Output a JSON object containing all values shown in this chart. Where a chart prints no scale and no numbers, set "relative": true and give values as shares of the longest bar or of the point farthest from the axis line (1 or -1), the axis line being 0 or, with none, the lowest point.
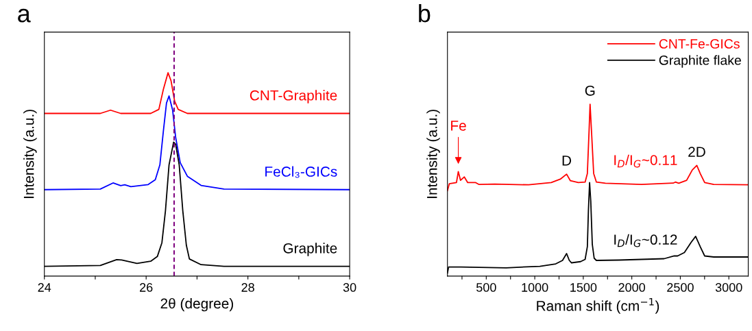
{
  "chart_data": [
    {
      "type": "line",
      "title": "a",
      "xlabel": "2θ (degree)",
      "ylabel": "Intensity (a.u.)",
      "relative": true,
      "legend": false,
      "tick_labels": "x",
      "grid": false,
      "xlim": [
        24,
        30
      ],
      "xticks": [
        24,
        {
          "value": 25,
          "label": null
        },
        26,
        {
          "value": 27,
          "label": null
        },
        28,
        {
          "value": 29,
          "label": null
        },
        30
      ],
      "ref_lines": [
        {
          "axis": "x",
          "value": 26.55,
          "color": "#800080",
          "line_style": "dashed"
        }
      ],
      "series": [
        {
          "name": "CNT-Graphite",
          "color": "#ff0000",
          "x": [
            24,
            25.1,
            25.3,
            25.5,
            26.09,
            26.25,
            26.34,
            26.43,
            26.49,
            26.56,
            26.63,
            26.81,
            27.5,
            30
          ],
          "values": [
            0.8,
            0.8,
            0.816,
            0.8,
            0.8,
            0.82,
            0.92,
            1.0,
            0.96,
            0.86,
            0.82,
            0.8,
            0.8,
            0.8
          ]
        },
        {
          "name": "FeCl₃-GICs",
          "color": "#0000ff",
          "x": [
            24,
            25.1,
            25.35,
            25.5,
            25.58,
            25.7,
            26.04,
            26.18,
            26.27,
            26.34,
            26.4,
            26.45,
            26.52,
            26.58,
            26.67,
            26.81,
            27.08,
            27.53,
            30
          ],
          "values": [
            0.425,
            0.428,
            0.458,
            0.445,
            0.449,
            0.44,
            0.45,
            0.474,
            0.547,
            0.716,
            0.851,
            0.886,
            0.817,
            0.682,
            0.558,
            0.491,
            0.446,
            0.428,
            0.425
          ]
        },
        {
          "name": "Graphite",
          "color": "#000000",
          "x": [
            24,
            25.1,
            25.42,
            25.52,
            25.82,
            26.09,
            26.22,
            26.31,
            26.38,
            26.45,
            26.54,
            26.58,
            26.65,
            26.72,
            26.79,
            26.85,
            27.08,
            27.53,
            30
          ],
          "values": [
            0.048,
            0.052,
            0.081,
            0.079,
            0.062,
            0.073,
            0.096,
            0.164,
            0.322,
            0.547,
            0.659,
            0.648,
            0.547,
            0.322,
            0.152,
            0.084,
            0.056,
            0.048,
            0.048
          ]
        }
      ]
    },
    {
      "type": "line",
      "title": "b",
      "xlabel": "Raman shift (cm$^{−1}$)",
      "ylabel": "Intensity (a.u.)",
      "relative": true,
      "legend": "top right",
      "tick_labels": "x",
      "grid": false,
      "xlim": [
        100,
        3200
      ],
      "xticks": [
        {
          "value": 250,
          "label": null
        },
        500,
        {
          "value": 750,
          "label": null
        },
        1000,
        {
          "value": 1250,
          "label": null
        },
        1500,
        {
          "value": 1750,
          "label": null
        },
        2000,
        {
          "value": 2250,
          "label": null
        },
        2500,
        {
          "value": 2750,
          "label": null
        },
        3000
      ],
      "annotations": [
        {
          "text": "Fe",
          "x": 212,
          "y": 0.608
        },
        {
          "text": "D",
          "x": 1328,
          "y": 0.593
        },
        {
          "text": "G",
          "x": 1570,
          "y": 1.0
        },
        {
          "text": "2D",
          "x": 2670,
          "y": 0.644
        },
        "I$_{D}$/I$_{G}$~0.11",
        "I$_{D}$/I$_{G}$~0.12"
      ],
      "series": [
        {
          "name": "CNT-Fe-GICs",
          "color": "#ff0000",
          "x": [
            100,
            119,
            193,
            212,
            235,
            274,
            309,
            391,
            426,
            588,
            937,
            1170,
            1263,
            1328,
            1367,
            1449,
            1519,
            1542,
            1560,
            1570,
            1584,
            1607,
            1635,
            1728,
            2100,
            2426,
            2449,
            2484,
            2565,
            2623,
            2670,
            2705,
            2751,
            2844,
            3195
          ],
          "values": [
            0.497,
            0.537,
            0.544,
            0.608,
            0.557,
            0.577,
            0.544,
            0.544,
            0.533,
            0.535,
            0.531,
            0.544,
            0.564,
            0.593,
            0.555,
            0.544,
            0.547,
            0.597,
            0.851,
            1.0,
            0.851,
            0.597,
            0.547,
            0.54,
            0.533,
            0.541,
            0.547,
            0.54,
            0.557,
            0.617,
            0.644,
            0.597,
            0.544,
            0.533,
            0.531
          ]
        },
        {
          "name": "Graphite flake",
          "color": "#000000",
          "x": [
            100,
            112,
            240,
            705,
            1053,
            1216,
            1286,
            1328,
            1356,
            1379,
            1472,
            1519,
            1542,
            1553,
            1565,
            1577,
            1593,
            1612,
            1635,
            1867,
            2333,
            2437,
            2472,
            2542,
            2612,
            2658,
            2705,
            2751,
            2844,
            3195
          ],
          "values": [
            0.017,
            0.053,
            0.053,
            0.048,
            0.057,
            0.071,
            0.091,
            0.131,
            0.091,
            0.077,
            0.084,
            0.097,
            0.171,
            0.384,
            0.544,
            0.437,
            0.184,
            0.104,
            0.091,
            0.093,
            0.101,
            0.117,
            0.117,
            0.137,
            0.197,
            0.231,
            0.171,
            0.117,
            0.111,
            0.111
          ]
        }
      ]
    }
  ]
}
